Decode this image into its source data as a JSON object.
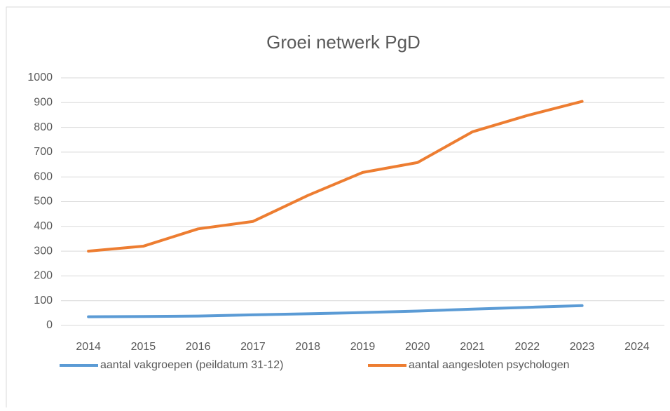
{
  "chart_data": {
    "type": "line",
    "title": "Groei netwerk PgD",
    "categories": [
      "2014",
      "2015",
      "2016",
      "2017",
      "2018",
      "2019",
      "2020",
      "2021",
      "2022",
      "2023",
      "2024"
    ],
    "series": [
      {
        "name": "aantal vakgroepen (peildatum 31-12)",
        "color": "#5b9bd5",
        "values": [
          35,
          36,
          38,
          43,
          47,
          52,
          58,
          66,
          73,
          80,
          null
        ]
      },
      {
        "name": "aantal aangesloten psychologen",
        "color": "#ed7d31",
        "values": [
          300,
          320,
          390,
          420,
          525,
          618,
          658,
          782,
          848,
          905,
          null
        ]
      }
    ],
    "ylim": [
      0,
      1000
    ],
    "yticks": [
      0,
      100,
      200,
      300,
      400,
      500,
      600,
      700,
      800,
      900,
      1000
    ],
    "grid": true,
    "legend": "bottom"
  }
}
